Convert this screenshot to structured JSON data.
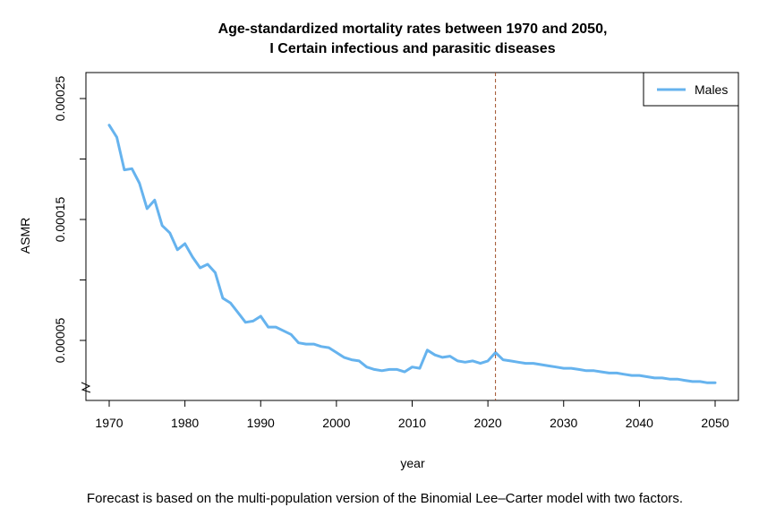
{
  "chart_data": {
    "type": "line",
    "title": "Age-standardized mortality rates between 1970 and 2050,",
    "subtitle": "I Certain infectious and parasitic diseases",
    "xlabel": "year",
    "ylabel": "ASMR",
    "xlim": [
      1970,
      2050
    ],
    "ylim": [
      1.5e-05,
      0.000257
    ],
    "y_axis_break": true,
    "grid": false,
    "legend_position": "top-right",
    "x_ticks": [
      1970,
      1980,
      1990,
      2000,
      2010,
      2020,
      2030,
      2040,
      2050
    ],
    "y_ticks": [
      "0.00005",
      "0.00015",
      "0.00025"
    ],
    "vertical_line": {
      "x": 2021,
      "color": "#a0522d",
      "style": "dashed"
    },
    "series": [
      {
        "name": "Males",
        "color": "#66b3ee",
        "x": [
          1970,
          1971,
          1972,
          1973,
          1974,
          1975,
          1976,
          1977,
          1978,
          1979,
          1980,
          1981,
          1982,
          1983,
          1984,
          1985,
          1986,
          1987,
          1988,
          1989,
          1990,
          1991,
          1992,
          1993,
          1994,
          1995,
          1996,
          1997,
          1998,
          1999,
          2000,
          2001,
          2002,
          2003,
          2004,
          2005,
          2006,
          2007,
          2008,
          2009,
          2010,
          2011,
          2012,
          2013,
          2014,
          2015,
          2016,
          2017,
          2018,
          2019,
          2020,
          2021,
          2022,
          2023,
          2024,
          2025,
          2026,
          2027,
          2028,
          2029,
          2030,
          2031,
          2032,
          2033,
          2034,
          2035,
          2036,
          2037,
          2038,
          2039,
          2040,
          2041,
          2042,
          2043,
          2044,
          2045,
          2046,
          2047,
          2048,
          2049,
          2050
        ],
        "values": [
          0.000228,
          0.000218,
          0.000191,
          0.000192,
          0.00018,
          0.000159,
          0.000166,
          0.000145,
          0.000139,
          0.000125,
          0.00013,
          0.000119,
          0.00011,
          0.000113,
          0.000106,
          8.5e-05,
          8.1e-05,
          7.3e-05,
          6.5e-05,
          6.6e-05,
          7e-05,
          6.1e-05,
          6.1e-05,
          5.8e-05,
          5.5e-05,
          4.8e-05,
          4.7e-05,
          4.7e-05,
          4.5e-05,
          4.4e-05,
          4e-05,
          3.6e-05,
          3.4e-05,
          3.3e-05,
          2.8e-05,
          2.6e-05,
          2.5e-05,
          2.6e-05,
          2.6e-05,
          2.4e-05,
          2.8e-05,
          2.7e-05,
          4.2e-05,
          3.8e-05,
          3.6e-05,
          3.7e-05,
          3.3e-05,
          3.2e-05,
          3.3e-05,
          3.1e-05,
          3.3e-05,
          4e-05,
          3.4e-05,
          3.3e-05,
          3.2e-05,
          3.1e-05,
          3.1e-05,
          3e-05,
          2.9e-05,
          2.8e-05,
          2.7e-05,
          2.7e-05,
          2.6e-05,
          2.5e-05,
          2.5e-05,
          2.4e-05,
          2.3e-05,
          2.3e-05,
          2.2e-05,
          2.1e-05,
          2.1e-05,
          2e-05,
          1.9e-05,
          1.9e-05,
          1.8e-05,
          1.8e-05,
          1.7e-05,
          1.6e-05,
          1.6e-05,
          1.5e-05,
          1.5e-05
        ]
      }
    ]
  },
  "footnote": "Forecast is based on the multi-population version of the Binomial Lee–Carter model with two factors."
}
